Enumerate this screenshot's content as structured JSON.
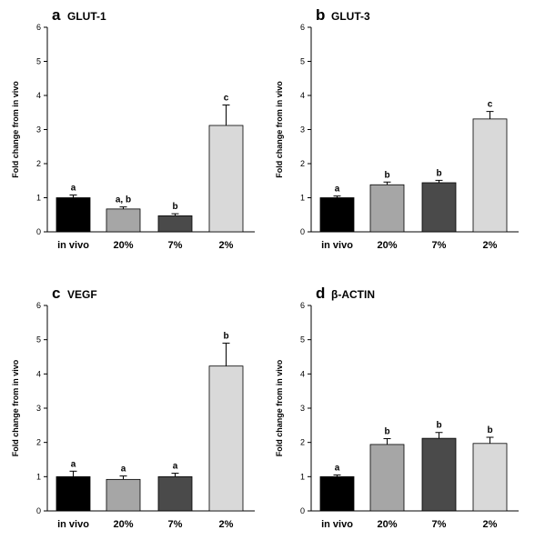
{
  "chart_data": [
    {
      "type": "bar",
      "panel": "a",
      "title": "GLUT-1",
      "ylabel": "Fold change from in vivo",
      "ylim": [
        0,
        6
      ],
      "yticks": [
        "0",
        "1",
        "2",
        "3",
        "4",
        "5",
        "6"
      ],
      "categories": [
        "in vivo",
        "20%",
        "7%",
        "2%"
      ],
      "values": [
        1.0,
        0.67,
        0.47,
        3.12
      ],
      "errors": [
        0.08,
        0.06,
        0.06,
        0.6
      ],
      "significance": [
        "a",
        "a, b",
        "b",
        "c"
      ]
    },
    {
      "type": "bar",
      "panel": "b",
      "title": "GLUT-3",
      "ylabel": "Fold change from in vivo",
      "ylim": [
        0,
        6
      ],
      "yticks": [
        "0",
        "1",
        "2",
        "3",
        "4",
        "5",
        "6"
      ],
      "categories": [
        "in vivo",
        "20%",
        "7%",
        "2%"
      ],
      "values": [
        1.0,
        1.38,
        1.44,
        3.31
      ],
      "errors": [
        0.05,
        0.08,
        0.07,
        0.22
      ],
      "significance": [
        "a",
        "b",
        "b",
        "c"
      ]
    },
    {
      "type": "bar",
      "panel": "c",
      "title": "VEGF",
      "ylabel": "Fold change from in vivo",
      "ylim": [
        0,
        6
      ],
      "yticks": [
        "0",
        "1",
        "2",
        "3",
        "4",
        "5",
        "6"
      ],
      "categories": [
        "in vivo",
        "20%",
        "7%",
        "2%"
      ],
      "values": [
        1.0,
        0.92,
        1.0,
        4.23
      ],
      "errors": [
        0.16,
        0.1,
        0.1,
        0.67
      ],
      "significance": [
        "a",
        "a",
        "a",
        "b"
      ]
    },
    {
      "type": "bar",
      "panel": "d",
      "title": "β-ACTIN",
      "ylabel": "Fold change from in vivo",
      "ylim": [
        0,
        6
      ],
      "yticks": [
        "0",
        "1",
        "2",
        "3",
        "4",
        "5",
        "6"
      ],
      "categories": [
        "in vivo",
        "20%",
        "7%",
        "2%"
      ],
      "values": [
        1.0,
        1.94,
        2.12,
        1.97
      ],
      "errors": [
        0.05,
        0.17,
        0.17,
        0.18
      ],
      "significance": [
        "a",
        "b",
        "b",
        "b"
      ]
    }
  ],
  "colors": {
    "bars": [
      "#000000",
      "#a6a6a6",
      "#4a4a4a",
      "#d9d9d9"
    ],
    "axis": "#000000",
    "background": "#ffffff"
  }
}
